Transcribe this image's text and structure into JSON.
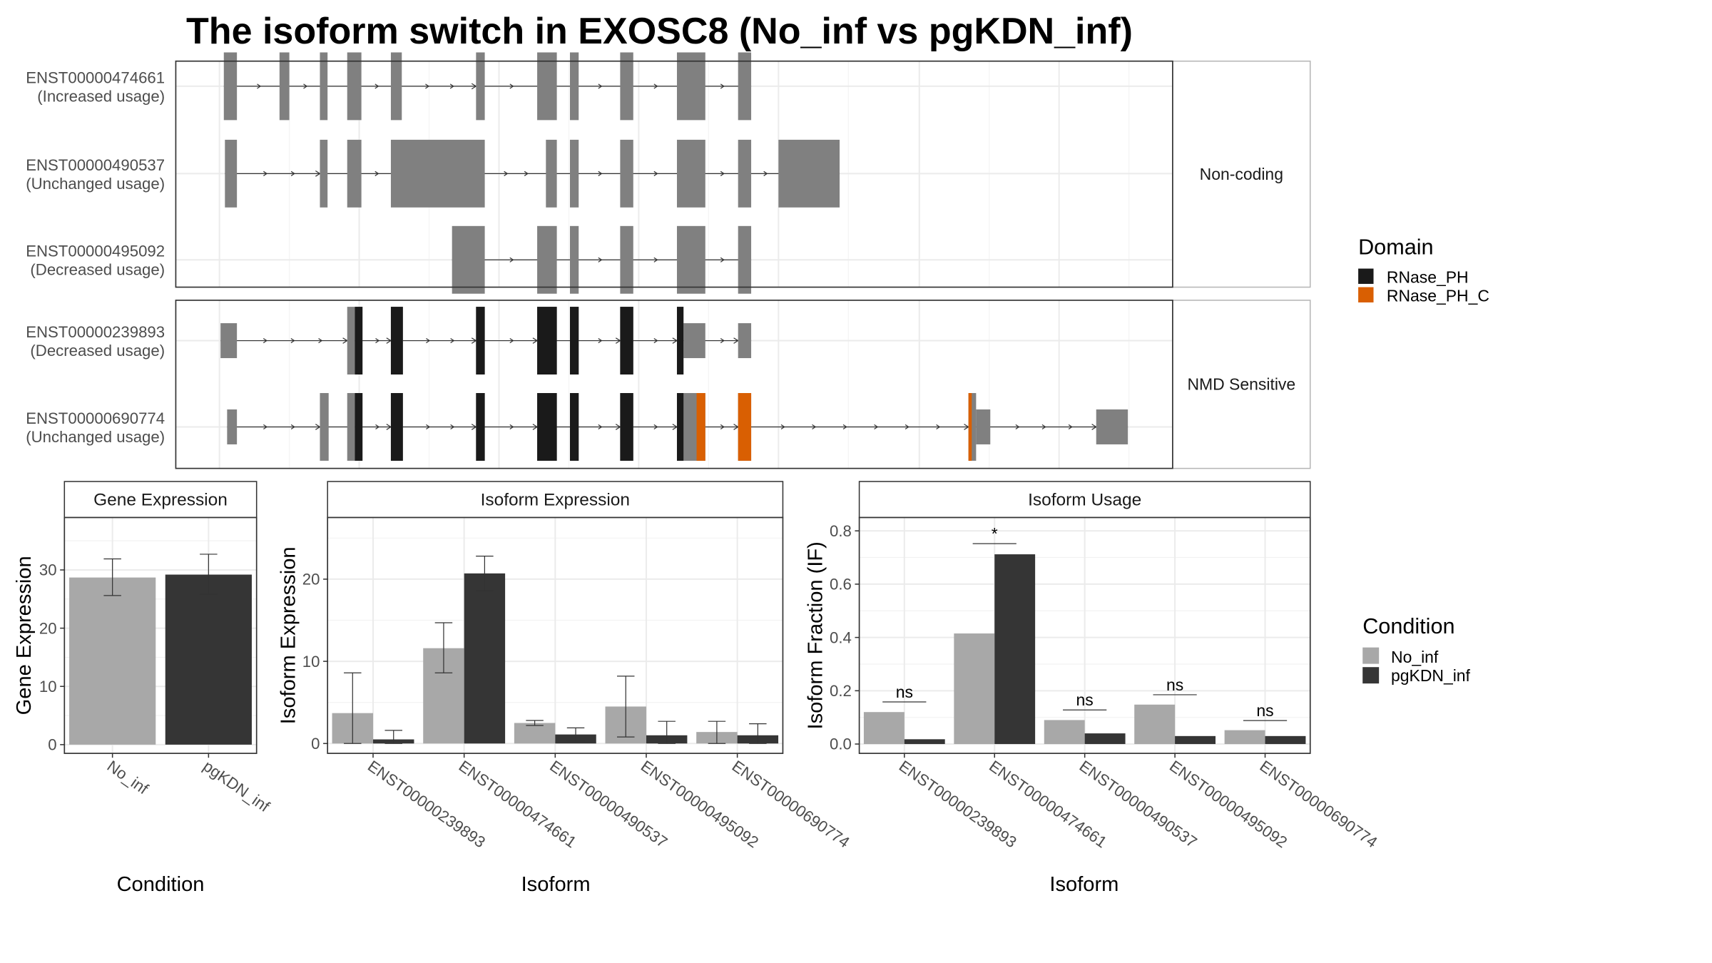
{
  "title": "The isoform switch in EXOSC8 (No_inf vs pgKDN_inf)",
  "colors": {
    "no_inf": "#a8a8a8",
    "pgkdn_inf": "#353535",
    "exon": "#808080",
    "RNase_PH": "#1a1a1a",
    "RNase_PH_C": "#d95f02"
  },
  "structure": {
    "panels": [
      {
        "label": "Non-coding",
        "transcripts": [
          {
            "id": "ENST00000474661",
            "usage": "(Increased usage)",
            "exons": [
              [
                205,
                217
              ],
              [
                256,
                265
              ],
              [
                293,
                300
              ],
              [
                318,
                331
              ],
              [
                358,
                368
              ],
              [
                436,
                444
              ],
              [
                492,
                510
              ],
              [
                522,
                530
              ],
              [
                568,
                580
              ],
              [
                620,
                646
              ],
              [
                676,
                688
              ]
            ],
            "domains": []
          },
          {
            "id": "ENST00000490537",
            "usage": "(Unchanged usage)",
            "exons": [
              [
                206,
                217
              ],
              [
                293,
                300
              ],
              [
                318,
                331
              ],
              [
                358,
                444
              ],
              [
                500,
                510
              ],
              [
                522,
                530
              ],
              [
                568,
                580
              ],
              [
                620,
                646
              ],
              [
                676,
                688
              ],
              [
                713,
                769
              ]
            ],
            "domains": []
          },
          {
            "id": "ENST00000495092",
            "usage": "(Decreased usage)",
            "exons": [
              [
                414,
                444
              ],
              [
                492,
                510
              ],
              [
                522,
                530
              ],
              [
                568,
                580
              ],
              [
                620,
                646
              ],
              [
                676,
                688
              ]
            ],
            "domains": []
          }
        ]
      },
      {
        "label": "NMD Sensitive",
        "transcripts": [
          {
            "id": "ENST00000239893",
            "usage": "(Decreased usage)",
            "exons": [
              [
                202,
                217,
                "utr"
              ],
              [
                318,
                325,
                "cds"
              ],
              [
                325,
                332,
                "cds"
              ],
              [
                358,
                369,
                "cds"
              ],
              [
                436,
                444,
                "cds"
              ],
              [
                492,
                510,
                "cds"
              ],
              [
                522,
                530,
                "cds"
              ],
              [
                568,
                580,
                "cds"
              ],
              [
                620,
                626,
                "cds"
              ],
              [
                626,
                646,
                "utr"
              ],
              [
                676,
                688,
                "utr"
              ]
            ],
            "domains": [
              [
                325,
                332,
                "RNase_PH"
              ],
              [
                358,
                369,
                "RNase_PH"
              ],
              [
                436,
                444,
                "RNase_PH"
              ],
              [
                492,
                510,
                "RNase_PH"
              ],
              [
                522,
                530,
                "RNase_PH"
              ],
              [
                568,
                580,
                "RNase_PH"
              ],
              [
                620,
                626,
                "RNase_PH"
              ]
            ]
          },
          {
            "id": "ENST00000690774",
            "usage": "(Unchanged usage)",
            "exons": [
              [
                208,
                217,
                "utr"
              ],
              [
                293,
                301,
                "cds"
              ],
              [
                318,
                325,
                "cds"
              ],
              [
                325,
                332,
                "cds"
              ],
              [
                358,
                369,
                "cds"
              ],
              [
                436,
                444,
                "cds"
              ],
              [
                492,
                510,
                "cds"
              ],
              [
                522,
                530,
                "cds"
              ],
              [
                568,
                580,
                "cds"
              ],
              [
                620,
                646,
                "cds"
              ],
              [
                676,
                688,
                "cds"
              ],
              [
                887,
                894,
                "cds"
              ],
              [
                894,
                907,
                "utr"
              ],
              [
                1004,
                1033,
                "utr"
              ]
            ],
            "domains": [
              [
                325,
                332,
                "RNase_PH"
              ],
              [
                358,
                369,
                "RNase_PH"
              ],
              [
                436,
                444,
                "RNase_PH"
              ],
              [
                492,
                510,
                "RNase_PH"
              ],
              [
                522,
                530,
                "RNase_PH"
              ],
              [
                568,
                580,
                "RNase_PH"
              ],
              [
                620,
                626,
                "RNase_PH"
              ],
              [
                638,
                646,
                "RNase_PH_C"
              ],
              [
                676,
                688,
                "RNase_PH_C"
              ],
              [
                887,
                890,
                "RNase_PH_C"
              ]
            ]
          }
        ]
      }
    ]
  },
  "legends": {
    "domain": {
      "title": "Domain",
      "items": [
        "RNase_PH",
        "RNase_PH_C"
      ]
    },
    "condition": {
      "title": "Condition",
      "items": [
        "No_inf",
        "pgKDN_inf"
      ]
    }
  },
  "chart_data": [
    {
      "type": "bar",
      "strip": "Gene Expression",
      "xlabel": "Condition",
      "ylabel": "Gene Expression",
      "categories": [
        "No_inf",
        "pgKDN_inf"
      ],
      "values": [
        28.7,
        29.2
      ],
      "err_low": [
        25.6,
        25.8
      ],
      "err_high": [
        31.9,
        32.7
      ],
      "ylim": [
        -1.5,
        39
      ],
      "yticks": [
        0,
        10,
        20,
        30
      ]
    },
    {
      "type": "bar",
      "strip": "Isoform Expression",
      "xlabel": "Isoform",
      "ylabel": "Isoform Expression",
      "categories": [
        "ENST00000239893",
        "ENST00000474661",
        "ENST00000490537",
        "ENST00000495092",
        "ENST00000690774"
      ],
      "series": [
        {
          "name": "No_inf",
          "values": [
            3.7,
            11.6,
            2.5,
            4.5,
            1.4
          ],
          "err_low": [
            0.0,
            8.6,
            2.2,
            0.8,
            0.0
          ],
          "err_high": [
            8.6,
            14.7,
            2.8,
            8.2,
            2.7
          ]
        },
        {
          "name": "pgKDN_inf",
          "values": [
            0.5,
            20.7,
            1.1,
            1.0,
            1.0
          ],
          "err_low": [
            0.0,
            18.6,
            0.3,
            0.0,
            0.0
          ],
          "err_high": [
            1.6,
            22.8,
            1.9,
            2.7,
            2.4
          ]
        }
      ],
      "ylim": [
        -1.2,
        27.5
      ],
      "yticks": [
        0,
        10,
        20
      ]
    },
    {
      "type": "bar",
      "strip": "Isoform Usage",
      "xlabel": "Isoform",
      "ylabel": "Isoform Fraction (IF)",
      "categories": [
        "ENST00000239893",
        "ENST00000474661",
        "ENST00000490537",
        "ENST00000495092",
        "ENST00000690774"
      ],
      "series": [
        {
          "name": "No_inf",
          "values": [
            0.12,
            0.415,
            0.09,
            0.148,
            0.052
          ]
        },
        {
          "name": "pgKDN_inf",
          "values": [
            0.018,
            0.712,
            0.04,
            0.03,
            0.03
          ]
        }
      ],
      "significance": [
        {
          "label": "ns",
          "y": 0.158
        },
        {
          "label": "*",
          "y": 0.752
        },
        {
          "label": "ns",
          "y": 0.128
        },
        {
          "label": "ns",
          "y": 0.185
        },
        {
          "label": "ns",
          "y": 0.088
        }
      ],
      "ylim": [
        -0.035,
        0.85
      ],
      "yticks": [
        0.0,
        0.2,
        0.4,
        0.6,
        0.8
      ],
      "ytick_labels": [
        "0.0",
        "0.2",
        "0.4",
        "0.6",
        "0.8"
      ]
    }
  ]
}
